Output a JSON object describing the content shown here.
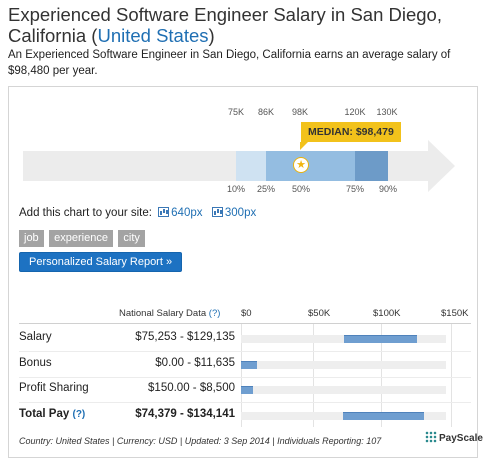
{
  "page": {
    "title_main": "Experienced Software Engineer Salary in San Diego, California (",
    "title_country": "United States",
    "title_close": ")",
    "intro": "An Experienced Software Engineer in San Diego, California earns an average salary of $98,480 per year."
  },
  "percentile_chart": {
    "top_ticks": [
      "75K",
      "86K",
      "98K",
      "120K",
      "130K"
    ],
    "bottom_ticks": [
      "10%",
      "25%",
      "50%",
      "75%",
      "90%"
    ],
    "median_label": "MEDIAN: $98,479",
    "median_icon": "star-icon",
    "colors": {
      "track": "#ececec",
      "p10_25": "#cfe2f2",
      "p25_75": "#94bde1",
      "p75_90": "#6d9bc8",
      "median_tag": "#f2c21b"
    }
  },
  "add_chart": {
    "label": "Add this chart to your site:",
    "link_640": "640px",
    "link_300": "300px",
    "icon": "chart-icon"
  },
  "tags": [
    "job",
    "experience",
    "city"
  ],
  "report_button": "Personalized Salary Report »",
  "table": {
    "header_label": "National Salary Data",
    "header_help": "(?)",
    "axis_ticks": [
      "$0",
      "$50K",
      "$100K",
      "$150K"
    ],
    "axis_max": 150000,
    "rows": [
      {
        "label": "Salary",
        "help": "",
        "value": "$75,253 - $129,135",
        "min": 75253,
        "max": 129135,
        "bold": false
      },
      {
        "label": "Bonus",
        "help": "",
        "value": "$0.00 - $11,635",
        "min": 0,
        "max": 11635,
        "bold": false
      },
      {
        "label": "Profit Sharing",
        "help": "",
        "value": "$150.00 - $8,500",
        "min": 150,
        "max": 8500,
        "bold": false
      },
      {
        "label": "Total Pay",
        "help": "(?)",
        "value": "$74,379 - $134,141",
        "min": 74379,
        "max": 134141,
        "bold": true
      }
    ]
  },
  "footer": {
    "text": "Country: United States | Currency: USD | Updated: 3 Sep 2014 | Individuals Reporting: 107",
    "logo": "PayScale"
  }
}
